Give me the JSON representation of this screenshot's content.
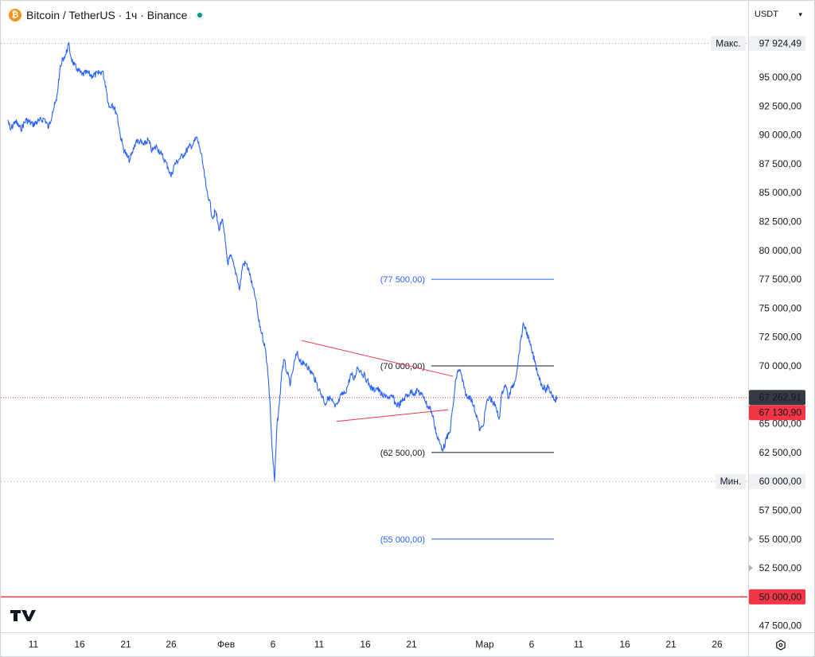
{
  "legend": {
    "coin_glyph": "₿",
    "title": "Bitcoin / TetherUS · 1ч · Binance"
  },
  "currency_selector": {
    "label": "USDT"
  },
  "chart_data": {
    "type": "line",
    "series": [
      {
        "name": "Bitcoin / TetherUS",
        "color": "#2962ff"
      }
    ],
    "ylim": [
      46800,
      100200
    ],
    "y_ticks": [
      {
        "v": 95000,
        "label": "95 000,00"
      },
      {
        "v": 92500,
        "label": "92 500,00"
      },
      {
        "v": 90000,
        "label": "90 000,00"
      },
      {
        "v": 87500,
        "label": "87 500,00"
      },
      {
        "v": 85000,
        "label": "85 000,00"
      },
      {
        "v": 82500,
        "label": "82 500,00"
      },
      {
        "v": 80000,
        "label": "80 000,00"
      },
      {
        "v": 77500,
        "label": "77 500,00"
      },
      {
        "v": 75000,
        "label": "75 000,00"
      },
      {
        "v": 72500,
        "label": "72 500,00"
      },
      {
        "v": 70000,
        "label": "70 000,00"
      },
      {
        "v": 65000,
        "label": "65 000,00"
      },
      {
        "v": 62500,
        "label": "62 500,00"
      },
      {
        "v": 57500,
        "label": "57 500,00"
      },
      {
        "v": 55000,
        "label": "55 000,00"
      },
      {
        "v": 52500,
        "label": "52 500,00"
      },
      {
        "v": 47500,
        "label": "47 500,00"
      }
    ],
    "x_ticks": [
      {
        "x": "11",
        "label": "11"
      },
      {
        "x": "16",
        "label": "16"
      },
      {
        "x": "21",
        "label": "21"
      },
      {
        "x": "26",
        "label": "26"
      },
      {
        "x": "Фев",
        "label": "Фев"
      },
      {
        "x": "6",
        "label": "6"
      },
      {
        "x": "11",
        "label": "11"
      },
      {
        "x": "16",
        "label": "16"
      },
      {
        "x": "21",
        "label": "21"
      },
      {
        "x": "Мар",
        "label": "Мар"
      },
      {
        "x": "6",
        "label": "6"
      },
      {
        "x": "11",
        "label": "11"
      },
      {
        "x": "16",
        "label": "16"
      },
      {
        "x": "21",
        "label": "21"
      },
      {
        "x": "26",
        "label": "26"
      }
    ],
    "price_path": [
      [
        9,
        91300
      ],
      [
        12,
        90400
      ],
      [
        18,
        91200
      ],
      [
        25,
        90500
      ],
      [
        32,
        91300
      ],
      [
        40,
        90900
      ],
      [
        48,
        91200
      ],
      [
        55,
        91400
      ],
      [
        60,
        90600
      ],
      [
        65,
        92000
      ],
      [
        70,
        93000
      ],
      [
        74,
        95500
      ],
      [
        78,
        96600
      ],
      [
        82,
        97000
      ],
      [
        85,
        97900
      ],
      [
        88,
        96800
      ],
      [
        92,
        96000
      ],
      [
        96,
        95700
      ],
      [
        102,
        95200
      ],
      [
        108,
        95400
      ],
      [
        115,
        95100
      ],
      [
        122,
        95300
      ],
      [
        128,
        95500
      ],
      [
        132,
        94200
      ],
      [
        136,
        92400
      ],
      [
        140,
        92700
      ],
      [
        146,
        91800
      ],
      [
        150,
        90000
      ],
      [
        154,
        88900
      ],
      [
        158,
        88200
      ],
      [
        162,
        87800
      ],
      [
        166,
        88600
      ],
      [
        170,
        89500
      ],
      [
        175,
        89400
      ],
      [
        180,
        89100
      ],
      [
        185,
        89600
      ],
      [
        190,
        88600
      ],
      [
        196,
        89000
      ],
      [
        202,
        88300
      ],
      [
        206,
        87800
      ],
      [
        210,
        87200
      ],
      [
        214,
        86400
      ],
      [
        218,
        87400
      ],
      [
        224,
        87900
      ],
      [
        230,
        88300
      ],
      [
        236,
        88900
      ],
      [
        242,
        89200
      ],
      [
        246,
        89800
      ],
      [
        250,
        88900
      ],
      [
        254,
        87400
      ],
      [
        258,
        85400
      ],
      [
        262,
        84400
      ],
      [
        266,
        82800
      ],
      [
        270,
        83400
      ],
      [
        274,
        81800
      ],
      [
        278,
        82700
      ],
      [
        282,
        80800
      ],
      [
        285,
        78900
      ],
      [
        289,
        79500
      ],
      [
        293,
        78600
      ],
      [
        297,
        77700
      ],
      [
        300,
        76600
      ],
      [
        304,
        78800
      ],
      [
        308,
        78900
      ],
      [
        312,
        78200
      ],
      [
        316,
        76900
      ],
      [
        320,
        75900
      ],
      [
        324,
        73900
      ],
      [
        328,
        72800
      ],
      [
        332,
        71600
      ],
      [
        335,
        70000
      ],
      [
        338,
        67100
      ],
      [
        341,
        62700
      ],
      [
        344,
        60000
      ],
      [
        347,
        64800
      ],
      [
        350,
        66700
      ],
      [
        353,
        69500
      ],
      [
        356,
        70500
      ],
      [
        360,
        69300
      ],
      [
        364,
        68400
      ],
      [
        368,
        70000
      ],
      [
        372,
        71100
      ],
      [
        376,
        70500
      ],
      [
        380,
        70100
      ],
      [
        384,
        70200
      ],
      [
        388,
        69600
      ],
      [
        392,
        69300
      ],
      [
        396,
        68600
      ],
      [
        400,
        67900
      ],
      [
        404,
        67400
      ],
      [
        408,
        66700
      ],
      [
        412,
        67300
      ],
      [
        416,
        67000
      ],
      [
        420,
        66400
      ],
      [
        424,
        66800
      ],
      [
        428,
        67500
      ],
      [
        432,
        67600
      ],
      [
        436,
        68300
      ],
      [
        440,
        69300
      ],
      [
        444,
        68800
      ],
      [
        448,
        69900
      ],
      [
        452,
        69600
      ],
      [
        456,
        69200
      ],
      [
        460,
        68800
      ],
      [
        464,
        68200
      ],
      [
        468,
        67900
      ],
      [
        472,
        68100
      ],
      [
        476,
        67800
      ],
      [
        480,
        67300
      ],
      [
        484,
        67500
      ],
      [
        488,
        67100
      ],
      [
        492,
        67400
      ],
      [
        496,
        66700
      ],
      [
        500,
        66600
      ],
      [
        504,
        66900
      ],
      [
        508,
        67300
      ],
      [
        512,
        67500
      ],
      [
        516,
        67800
      ],
      [
        520,
        67600
      ],
      [
        524,
        67900
      ],
      [
        528,
        67500
      ],
      [
        532,
        67300
      ],
      [
        536,
        66500
      ],
      [
        540,
        66300
      ],
      [
        544,
        65300
      ],
      [
        548,
        63900
      ],
      [
        552,
        63200
      ],
      [
        556,
        62800
      ],
      [
        560,
        63700
      ],
      [
        564,
        64200
      ],
      [
        568,
        66400
      ],
      [
        572,
        68900
      ],
      [
        575,
        69700
      ],
      [
        578,
        69400
      ],
      [
        582,
        68100
      ],
      [
        586,
        67200
      ],
      [
        590,
        67400
      ],
      [
        594,
        66500
      ],
      [
        598,
        65700
      ],
      [
        602,
        64400
      ],
      [
        606,
        64800
      ],
      [
        610,
        66700
      ],
      [
        614,
        67300
      ],
      [
        618,
        66900
      ],
      [
        622,
        66400
      ],
      [
        626,
        65400
      ],
      [
        630,
        67800
      ],
      [
        634,
        68400
      ],
      [
        638,
        67200
      ],
      [
        642,
        68100
      ],
      [
        646,
        68700
      ],
      [
        650,
        70400
      ],
      [
        654,
        72600
      ],
      [
        657,
        73600
      ],
      [
        660,
        73100
      ],
      [
        664,
        72100
      ],
      [
        668,
        71100
      ],
      [
        672,
        70100
      ],
      [
        676,
        69100
      ],
      [
        680,
        68300
      ],
      [
        684,
        67900
      ],
      [
        688,
        68100
      ],
      [
        692,
        67600
      ],
      [
        696,
        67100
      ],
      [
        699,
        67263
      ]
    ],
    "horizontal_levels": [
      {
        "name": "max",
        "price": 97924.49,
        "label": "97 924,49",
        "tag": "Макс."
      },
      {
        "name": "min",
        "price": 60000,
        "label": "60 000,00",
        "tag": "Мин."
      },
      {
        "name": "current",
        "price": 67262.91,
        "label": "67 262,91"
      },
      {
        "name": "alert",
        "price": 67130.9,
        "label": "67 130,90"
      },
      {
        "name": "support",
        "price": 50000,
        "label": "50 000,00"
      }
    ],
    "price_targets": [
      {
        "price": 77500,
        "label": "(77 500,00)",
        "color": "#2962ff"
      },
      {
        "price": 70000,
        "label": "(70 000,00)",
        "color": "#131722"
      },
      {
        "price": 62500,
        "label": "(62 500,00)",
        "color": "#131722"
      },
      {
        "price": 55000,
        "label": "(55 000,00)",
        "color": "#2962ff"
      }
    ],
    "triangle": {
      "upper": [
        [
          378,
          72200
        ],
        [
          568,
          69100
        ]
      ],
      "lower": [
        [
          422,
          65200
        ],
        [
          562,
          66200
        ]
      ]
    },
    "scale_markers": [
      {
        "price": 55000
      },
      {
        "price": 52500
      }
    ]
  }
}
